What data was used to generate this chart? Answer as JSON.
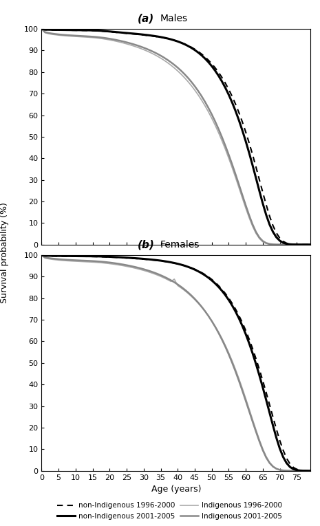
{
  "title_a": "(a) Males",
  "title_b": "(b) Females",
  "xlabel": "Age (years)",
  "ylabel": "Survival probability (%)",
  "xlim": [
    0,
    79
  ],
  "ylim": [
    0,
    100
  ],
  "xticks": [
    0,
    5,
    10,
    15,
    20,
    25,
    30,
    35,
    40,
    45,
    50,
    55,
    60,
    65,
    70,
    75
  ],
  "yticks": [
    0,
    10,
    20,
    30,
    40,
    50,
    60,
    70,
    80,
    90,
    100
  ],
  "ages": [
    0,
    1,
    2,
    3,
    4,
    5,
    6,
    7,
    8,
    9,
    10,
    11,
    12,
    13,
    14,
    15,
    16,
    17,
    18,
    19,
    20,
    21,
    22,
    23,
    24,
    25,
    26,
    27,
    28,
    29,
    30,
    31,
    32,
    33,
    34,
    35,
    36,
    37,
    38,
    39,
    40,
    41,
    42,
    43,
    44,
    45,
    46,
    47,
    48,
    49,
    50,
    51,
    52,
    53,
    54,
    55,
    56,
    57,
    58,
    59,
    60,
    61,
    62,
    63,
    64,
    65,
    66,
    67,
    68,
    69,
    70,
    71,
    72,
    73,
    74,
    75,
    76,
    77,
    78,
    79
  ],
  "male_nonindigenous_9600": [
    100,
    99.6,
    99.55,
    99.5,
    99.47,
    99.44,
    99.42,
    99.4,
    99.38,
    99.36,
    99.34,
    99.32,
    99.3,
    99.28,
    99.25,
    99.2,
    99.14,
    99.06,
    98.95,
    98.82,
    98.67,
    98.52,
    98.38,
    98.24,
    98.1,
    97.96,
    97.82,
    97.67,
    97.52,
    97.36,
    97.19,
    97.01,
    96.82,
    96.61,
    96.38,
    96.12,
    95.83,
    95.5,
    95.13,
    94.7,
    94.22,
    93.67,
    93.04,
    92.33,
    91.52,
    90.6,
    89.56,
    88.38,
    87.05,
    85.55,
    83.87,
    81.98,
    79.87,
    77.51,
    74.88,
    71.96,
    68.72,
    65.13,
    61.18,
    56.86,
    52.17,
    47.12,
    41.72,
    36.0,
    30.1,
    24.2,
    18.5,
    13.2,
    8.8,
    5.4,
    3.0,
    1.5,
    0.65,
    0.24,
    0.07,
    0.02,
    0.0,
    0.0,
    0.0,
    0.0
  ],
  "male_nonindigenous_0105": [
    100,
    99.7,
    99.65,
    99.61,
    99.58,
    99.56,
    99.54,
    99.52,
    99.5,
    99.48,
    99.46,
    99.44,
    99.42,
    99.4,
    99.37,
    99.33,
    99.27,
    99.19,
    99.09,
    98.96,
    98.82,
    98.67,
    98.53,
    98.39,
    98.25,
    98.11,
    97.97,
    97.83,
    97.68,
    97.52,
    97.35,
    97.17,
    96.97,
    96.75,
    96.51,
    96.24,
    95.93,
    95.58,
    95.18,
    94.72,
    94.2,
    93.6,
    92.92,
    92.14,
    91.26,
    90.25,
    89.1,
    87.8,
    86.32,
    84.65,
    82.77,
    80.66,
    78.3,
    75.67,
    72.74,
    69.49,
    65.9,
    61.95,
    57.63,
    52.94,
    47.89,
    42.5,
    36.8,
    30.9,
    24.9,
    19.1,
    13.8,
    9.3,
    5.9,
    3.4,
    1.8,
    0.85,
    0.36,
    0.13,
    0.04,
    0.01,
    0.0,
    0.0,
    0.0,
    0.0
  ],
  "male_indigenous_9600": [
    100,
    98.2,
    97.8,
    97.5,
    97.3,
    97.1,
    96.95,
    96.82,
    96.7,
    96.6,
    96.5,
    96.4,
    96.3,
    96.2,
    96.1,
    95.98,
    95.83,
    95.65,
    95.43,
    95.18,
    94.9,
    94.59,
    94.25,
    93.88,
    93.48,
    93.05,
    92.59,
    92.1,
    91.57,
    91.0,
    90.38,
    89.72,
    89.0,
    88.22,
    87.37,
    86.45,
    85.45,
    84.36,
    83.18,
    81.9,
    80.51,
    79.01,
    77.38,
    75.62,
    73.72,
    71.66,
    69.43,
    67.02,
    64.42,
    61.62,
    58.6,
    55.36,
    51.88,
    48.17,
    44.22,
    40.04,
    35.65,
    31.08,
    26.36,
    21.56,
    16.87,
    12.43,
    8.48,
    5.2,
    2.8,
    1.3,
    0.53,
    0.19,
    0.06,
    0.02,
    0.0,
    0.0,
    0.0,
    0.0,
    0.0,
    0.0,
    0.0,
    0.0,
    0.0,
    0.0
  ],
  "male_indigenous_0105": [
    100,
    98.5,
    98.15,
    97.87,
    97.65,
    97.47,
    97.32,
    97.19,
    97.08,
    96.98,
    96.88,
    96.79,
    96.7,
    96.61,
    96.52,
    96.41,
    96.28,
    96.12,
    95.93,
    95.71,
    95.46,
    95.18,
    94.87,
    94.54,
    94.18,
    93.78,
    93.36,
    92.9,
    92.41,
    91.88,
    91.3,
    90.68,
    90.0,
    89.27,
    88.48,
    87.62,
    86.68,
    85.66,
    84.55,
    83.35,
    82.04,
    80.61,
    79.05,
    77.35,
    75.5,
    73.48,
    71.28,
    68.88,
    66.28,
    63.46,
    60.42,
    57.14,
    53.62,
    49.86,
    45.87,
    41.65,
    37.22,
    32.6,
    27.84,
    22.98,
    18.2,
    13.6,
    9.4,
    5.9,
    3.3,
    1.65,
    0.74,
    0.3,
    0.11,
    0.04,
    0.01,
    0.0,
    0.0,
    0.0,
    0.0,
    0.0,
    0.0,
    0.0,
    0.0,
    0.0
  ],
  "female_nonindigenous_9600": [
    100,
    99.65,
    99.6,
    99.56,
    99.53,
    99.51,
    99.49,
    99.47,
    99.45,
    99.44,
    99.42,
    99.41,
    99.39,
    99.38,
    99.36,
    99.34,
    99.31,
    99.27,
    99.22,
    99.16,
    99.09,
    99.01,
    98.93,
    98.85,
    98.76,
    98.67,
    98.57,
    98.47,
    98.36,
    98.24,
    98.12,
    97.98,
    97.84,
    97.68,
    97.51,
    97.32,
    97.1,
    96.86,
    96.59,
    96.29,
    95.95,
    95.57,
    95.14,
    94.65,
    94.09,
    93.46,
    92.74,
    91.92,
    90.99,
    89.93,
    88.73,
    87.37,
    85.84,
    84.12,
    82.19,
    80.03,
    77.62,
    74.94,
    71.96,
    68.66,
    65.02,
    61.03,
    56.69,
    52.01,
    47.03,
    41.77,
    36.28,
    30.62,
    24.9,
    19.3,
    14.04,
    9.5,
    5.8,
    3.2,
    1.55,
    0.66,
    0.25,
    0.08,
    0.02,
    0.0
  ],
  "female_nonindigenous_0105": [
    100,
    99.75,
    99.71,
    99.67,
    99.64,
    99.62,
    99.6,
    99.58,
    99.57,
    99.55,
    99.54,
    99.52,
    99.51,
    99.49,
    99.48,
    99.46,
    99.43,
    99.4,
    99.35,
    99.29,
    99.22,
    99.15,
    99.07,
    98.99,
    98.9,
    98.81,
    98.71,
    98.61,
    98.5,
    98.38,
    98.26,
    98.12,
    97.97,
    97.81,
    97.63,
    97.43,
    97.2,
    96.95,
    96.66,
    96.34,
    95.98,
    95.57,
    95.1,
    94.57,
    93.97,
    93.29,
    92.52,
    91.65,
    90.66,
    89.55,
    88.29,
    86.87,
    85.27,
    83.47,
    81.45,
    79.19,
    76.66,
    73.83,
    70.68,
    67.19,
    63.34,
    59.12,
    54.52,
    49.56,
    44.27,
    38.68,
    32.86,
    26.92,
    20.98,
    15.3,
    10.3,
    6.36,
    3.55,
    1.77,
    0.78,
    0.3,
    0.1,
    0.03,
    0.01,
    0.0
  ],
  "female_indigenous_9600": [
    100,
    98.6,
    98.3,
    98.05,
    97.85,
    97.68,
    97.54,
    97.42,
    97.32,
    97.23,
    97.14,
    97.06,
    96.98,
    96.9,
    96.82,
    96.74,
    96.64,
    96.52,
    96.38,
    96.22,
    96.03,
    95.82,
    95.59,
    95.34,
    95.07,
    94.77,
    94.45,
    94.1,
    93.73,
    93.33,
    92.89,
    92.42,
    91.91,
    91.36,
    90.76,
    90.11,
    89.4,
    88.63,
    87.79,
    88.87,
    85.87,
    84.78,
    83.6,
    82.31,
    80.91,
    79.39,
    77.74,
    75.95,
    74.0,
    71.88,
    69.58,
    67.07,
    64.35,
    61.39,
    58.18,
    54.72,
    50.98,
    46.98,
    42.71,
    38.2,
    33.52,
    28.7,
    23.83,
    19.04,
    14.45,
    10.2,
    6.67,
    3.97,
    2.15,
    1.05,
    0.46,
    0.18,
    0.06,
    0.02,
    0.0,
    0.0,
    0.0,
    0.0,
    0.0,
    0.0
  ],
  "female_indigenous_0105": [
    100,
    98.9,
    98.65,
    98.44,
    98.27,
    98.12,
    97.99,
    97.88,
    97.79,
    97.7,
    97.62,
    97.55,
    97.47,
    97.4,
    97.33,
    97.25,
    97.15,
    97.04,
    96.91,
    96.75,
    96.57,
    96.36,
    96.14,
    95.89,
    95.62,
    95.33,
    95.01,
    94.67,
    94.3,
    93.9,
    93.47,
    93.0,
    92.49,
    91.94,
    91.34,
    90.68,
    89.97,
    89.19,
    88.34,
    87.41,
    86.4,
    85.29,
    84.08,
    82.76,
    81.31,
    79.73,
    78.01,
    76.13,
    74.08,
    71.85,
    69.42,
    66.79,
    63.94,
    60.85,
    57.52,
    53.94,
    50.09,
    46.0,
    41.67,
    37.12,
    32.42,
    27.63,
    22.84,
    18.15,
    13.66,
    9.55,
    6.13,
    3.6,
    1.93,
    0.94,
    0.42,
    0.17,
    0.06,
    0.02,
    0.0,
    0.0,
    0.0,
    0.0,
    0.0,
    0.0
  ]
}
